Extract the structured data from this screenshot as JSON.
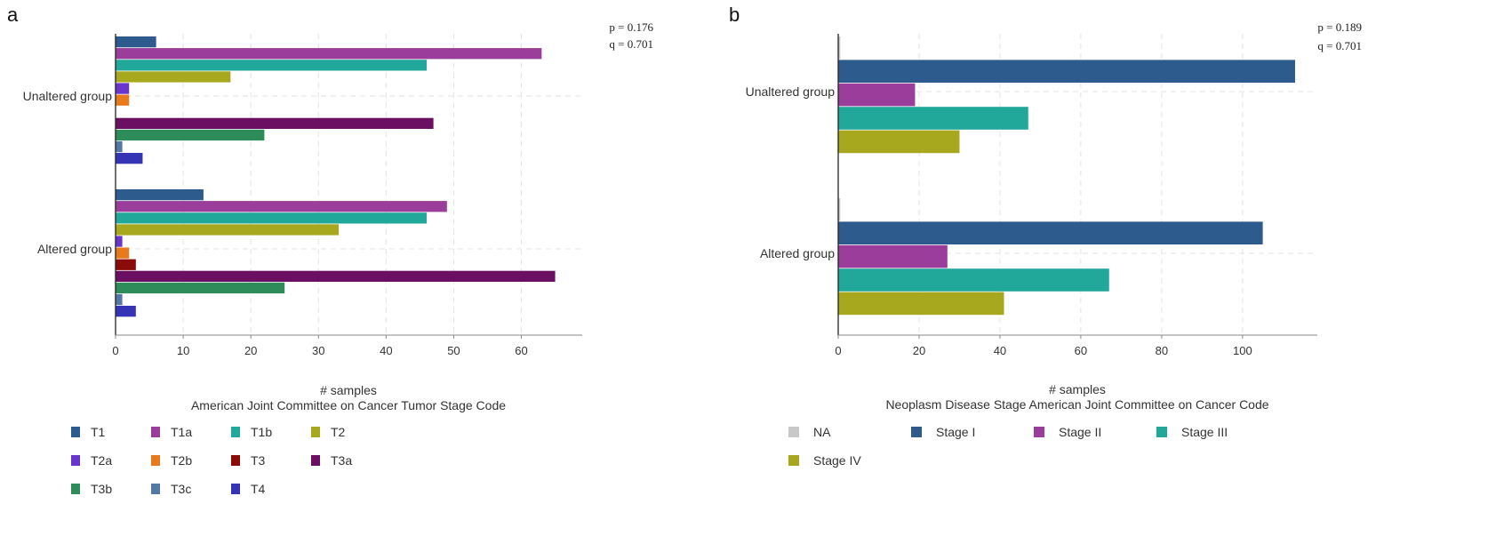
{
  "chart_data": [
    {
      "panel_label": "a",
      "type": "bar",
      "orientation": "horizontal",
      "categories": [
        "Unaltered group",
        "Altered group"
      ],
      "series": [
        {
          "name": "T1",
          "color": "#2E5B8E",
          "values": [
            6,
            13
          ]
        },
        {
          "name": "T1a",
          "color": "#9B3E9B",
          "values": [
            63,
            49
          ]
        },
        {
          "name": "T1b",
          "color": "#22A89A",
          "values": [
            46,
            46
          ]
        },
        {
          "name": "T2",
          "color": "#A8A81E",
          "values": [
            17,
            33
          ]
        },
        {
          "name": "T2a",
          "color": "#6A35CC",
          "values": [
            2,
            1
          ]
        },
        {
          "name": "T2b",
          "color": "#E87A1E",
          "values": [
            2,
            2
          ]
        },
        {
          "name": "T3",
          "color": "#8B0A0A",
          "values": [
            0,
            3
          ]
        },
        {
          "name": "T3a",
          "color": "#6A0F62",
          "values": [
            47,
            65
          ]
        },
        {
          "name": "T3b",
          "color": "#2E8B5A",
          "values": [
            22,
            25
          ]
        },
        {
          "name": "T3c",
          "color": "#5577A6",
          "values": [
            1,
            1
          ]
        },
        {
          "name": "T4",
          "color": "#3434B4",
          "values": [
            4,
            3
          ]
        }
      ],
      "xlabel": "# samples",
      "legend_title": "American Joint Committee on Cancer Tumor Stage Code",
      "xlim": [
        0,
        69
      ],
      "xticks": [
        0,
        10,
        20,
        30,
        40,
        50,
        60
      ],
      "annotations": [
        "p = 0.176",
        "q = 0.701"
      ],
      "grid": true,
      "legend_position": "bottom"
    },
    {
      "panel_label": "b",
      "type": "bar",
      "orientation": "horizontal",
      "categories": [
        "Unaltered group",
        "Altered group"
      ],
      "series": [
        {
          "name": "NA",
          "color": "#C8C8C8",
          "values": [
            0.5,
            0.5
          ]
        },
        {
          "name": "Stage I",
          "color": "#2E5B8E",
          "values": [
            113,
            105
          ]
        },
        {
          "name": "Stage II",
          "color": "#9B3E9B",
          "values": [
            19,
            27
          ]
        },
        {
          "name": "Stage III",
          "color": "#22A89A",
          "values": [
            47,
            67
          ]
        },
        {
          "name": "Stage IV",
          "color": "#A8A81E",
          "values": [
            30,
            41
          ]
        }
      ],
      "xlabel": "# samples",
      "legend_title": "Neoplasm Disease Stage American Joint Committee on Cancer Code",
      "xlim": [
        0,
        118.5
      ],
      "xticks": [
        0,
        20,
        40,
        60,
        80,
        100
      ],
      "annotations": [
        "p = 0.189",
        "q = 0.701"
      ],
      "grid": true,
      "legend_position": "bottom"
    }
  ]
}
